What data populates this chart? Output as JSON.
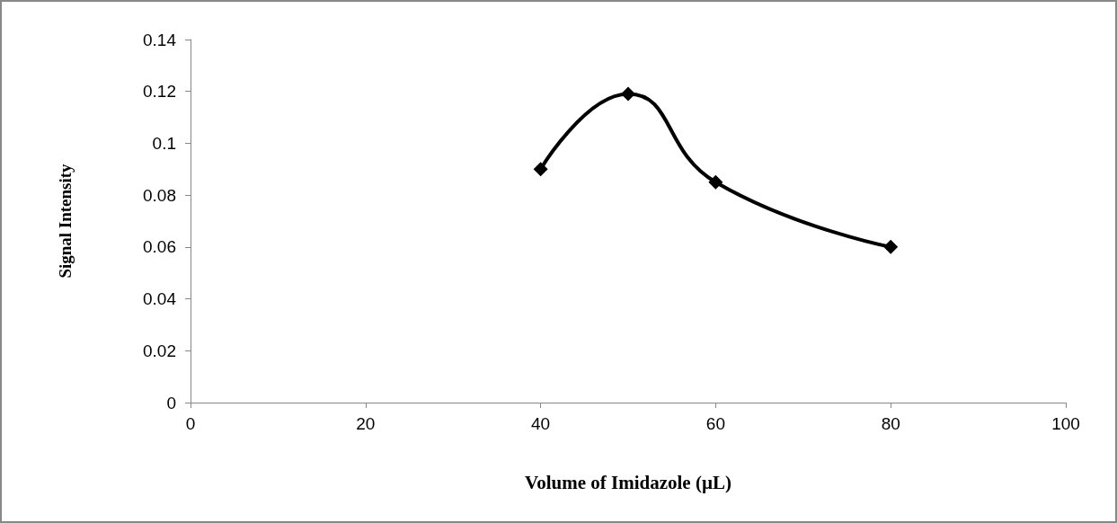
{
  "chart_data": {
    "type": "line",
    "xlabel": "Volume of Imidazole (µL)",
    "ylabel": "Signal Intensity",
    "x": [
      40,
      50,
      60,
      80
    ],
    "series": [
      {
        "color": "#000000",
        "values": [
          0.09,
          0.119,
          0.085,
          0.06
        ]
      }
    ],
    "xlim": [
      0,
      100
    ],
    "xticks": [
      0,
      20,
      40,
      60,
      80,
      100
    ],
    "ylim": [
      0,
      0.14
    ],
    "yticks": [
      0,
      0.02,
      0.04,
      0.06,
      0.08,
      0.1,
      0.12,
      0.14
    ],
    "grid": false,
    "marker": "diamond",
    "line_style": "solid"
  }
}
